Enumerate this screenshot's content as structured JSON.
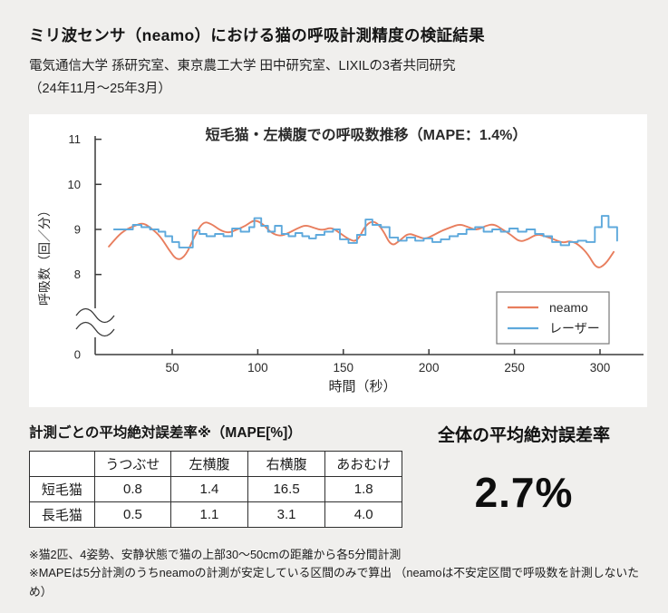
{
  "header": {
    "title": "ミリ波センサ（neamo）における猫の呼吸計測精度の検証結果",
    "subtitle_line1": "電気通信大学 孫研究室、東京農工大学 田中研究室、LIXILの3者共同研究",
    "subtitle_line2": "（24年11月〜25年3月）"
  },
  "chart_data": {
    "type": "line",
    "title": "短毛猫・左横腹での呼吸数推移（MAPE：1.4%）",
    "xlabel": "時間（秒）",
    "ylabel": "呼吸数（回／分）",
    "x_ticks": [
      50,
      100,
      150,
      200,
      250,
      300
    ],
    "y_ticks": [
      8,
      9,
      10,
      11
    ],
    "y_axis_break": true,
    "y_bottom_label": "0",
    "xlim": [
      0,
      320
    ],
    "ylim_shown": [
      8,
      11
    ],
    "grid": false,
    "legend_position": "lower right",
    "series": [
      {
        "name": "neamo",
        "color": "#E87E5E",
        "interpolation": "smooth",
        "x": [
          13,
          18,
          23,
          28,
          33,
          38,
          43,
          48,
          53,
          58,
          63,
          68,
          73,
          78,
          83,
          88,
          93,
          98,
          103,
          108,
          113,
          118,
          123,
          128,
          133,
          138,
          143,
          148,
          153,
          158,
          163,
          168,
          173,
          178,
          183,
          188,
          193,
          198,
          203,
          208,
          213,
          218,
          223,
          228,
          233,
          238,
          243,
          248,
          253,
          258,
          263,
          268,
          273,
          278,
          283,
          288,
          293,
          298,
          303,
          308
        ],
        "y": [
          8.62,
          8.85,
          9.0,
          9.08,
          9.15,
          9.02,
          8.85,
          8.55,
          8.3,
          8.42,
          8.85,
          9.18,
          9.12,
          8.98,
          8.92,
          9.0,
          9.08,
          9.22,
          9.12,
          8.92,
          8.85,
          8.92,
          9.02,
          9.1,
          9.03,
          8.98,
          9.05,
          8.92,
          8.78,
          8.72,
          9.1,
          9.2,
          9.0,
          8.62,
          8.75,
          8.92,
          8.85,
          8.78,
          8.88,
          8.98,
          9.05,
          9.12,
          9.05,
          8.98,
          9.08,
          9.12,
          9.0,
          8.88,
          8.72,
          8.78,
          8.9,
          8.85,
          8.78,
          8.7,
          8.75,
          8.65,
          8.45,
          8.12,
          8.22,
          8.5
        ]
      },
      {
        "name": "レーザー",
        "color": "#5EA9DC",
        "interpolation": "step",
        "x": [
          16,
          22,
          27,
          32,
          37,
          42,
          46,
          50,
          54,
          58,
          62,
          66,
          70,
          75,
          80,
          85,
          90,
          95,
          98,
          102,
          106,
          110,
          114,
          118,
          122,
          126,
          130,
          134,
          139,
          144,
          148,
          153,
          158,
          163,
          167,
          172,
          177,
          182,
          187,
          192,
          197,
          202,
          207,
          212,
          217,
          222,
          227,
          232,
          237,
          242,
          247,
          252,
          257,
          262,
          267,
          272,
          277,
          282,
          287,
          292,
          297,
          301,
          305,
          310
        ],
        "y": [
          9.0,
          9.0,
          9.1,
          9.05,
          9.0,
          8.95,
          8.85,
          8.72,
          8.6,
          8.6,
          8.98,
          8.9,
          8.85,
          8.9,
          8.85,
          9.02,
          8.95,
          9.05,
          9.25,
          9.08,
          8.95,
          9.08,
          8.9,
          8.85,
          8.92,
          8.85,
          8.8,
          8.88,
          8.95,
          9.0,
          8.78,
          8.7,
          8.88,
          9.22,
          9.1,
          9.05,
          8.82,
          8.75,
          8.82,
          8.75,
          8.8,
          8.72,
          8.78,
          8.85,
          8.9,
          9.0,
          9.05,
          8.95,
          9.0,
          8.95,
          9.02,
          8.95,
          9.0,
          8.9,
          8.85,
          8.72,
          8.65,
          8.72,
          8.75,
          8.72,
          9.05,
          9.3,
          9.05,
          8.75
        ]
      }
    ]
  },
  "results_table": {
    "title": "計測ごとの平均絶対誤差率※（MAPE[%]）",
    "columns": [
      "うつぶせ",
      "左横腹",
      "右横腹",
      "あおむけ"
    ],
    "rows": [
      {
        "label": "短毛猫",
        "values": [
          "0.8",
          "1.4",
          "16.5",
          "1.8"
        ]
      },
      {
        "label": "長毛猫",
        "values": [
          "0.5",
          "1.1",
          "3.1",
          "4.0"
        ]
      }
    ]
  },
  "overall": {
    "label": "全体の平均絶対誤差率",
    "value": "2.7%"
  },
  "footnotes": {
    "line1": "※猫2匹、4姿勢、安静状態で猫の上部30〜50cmの距離から各5分間計測",
    "line2": "※MAPEは5分計測のうちneamoの計測が安定している区間のみで算出 （neamoは不安定区間で呼吸数を計測しないため）"
  },
  "colors": {
    "neamo": "#E87E5E",
    "laser": "#5EA9DC",
    "background": "#F0EFED",
    "card": "#FFFFFF",
    "axis": "#3A3A3A"
  }
}
